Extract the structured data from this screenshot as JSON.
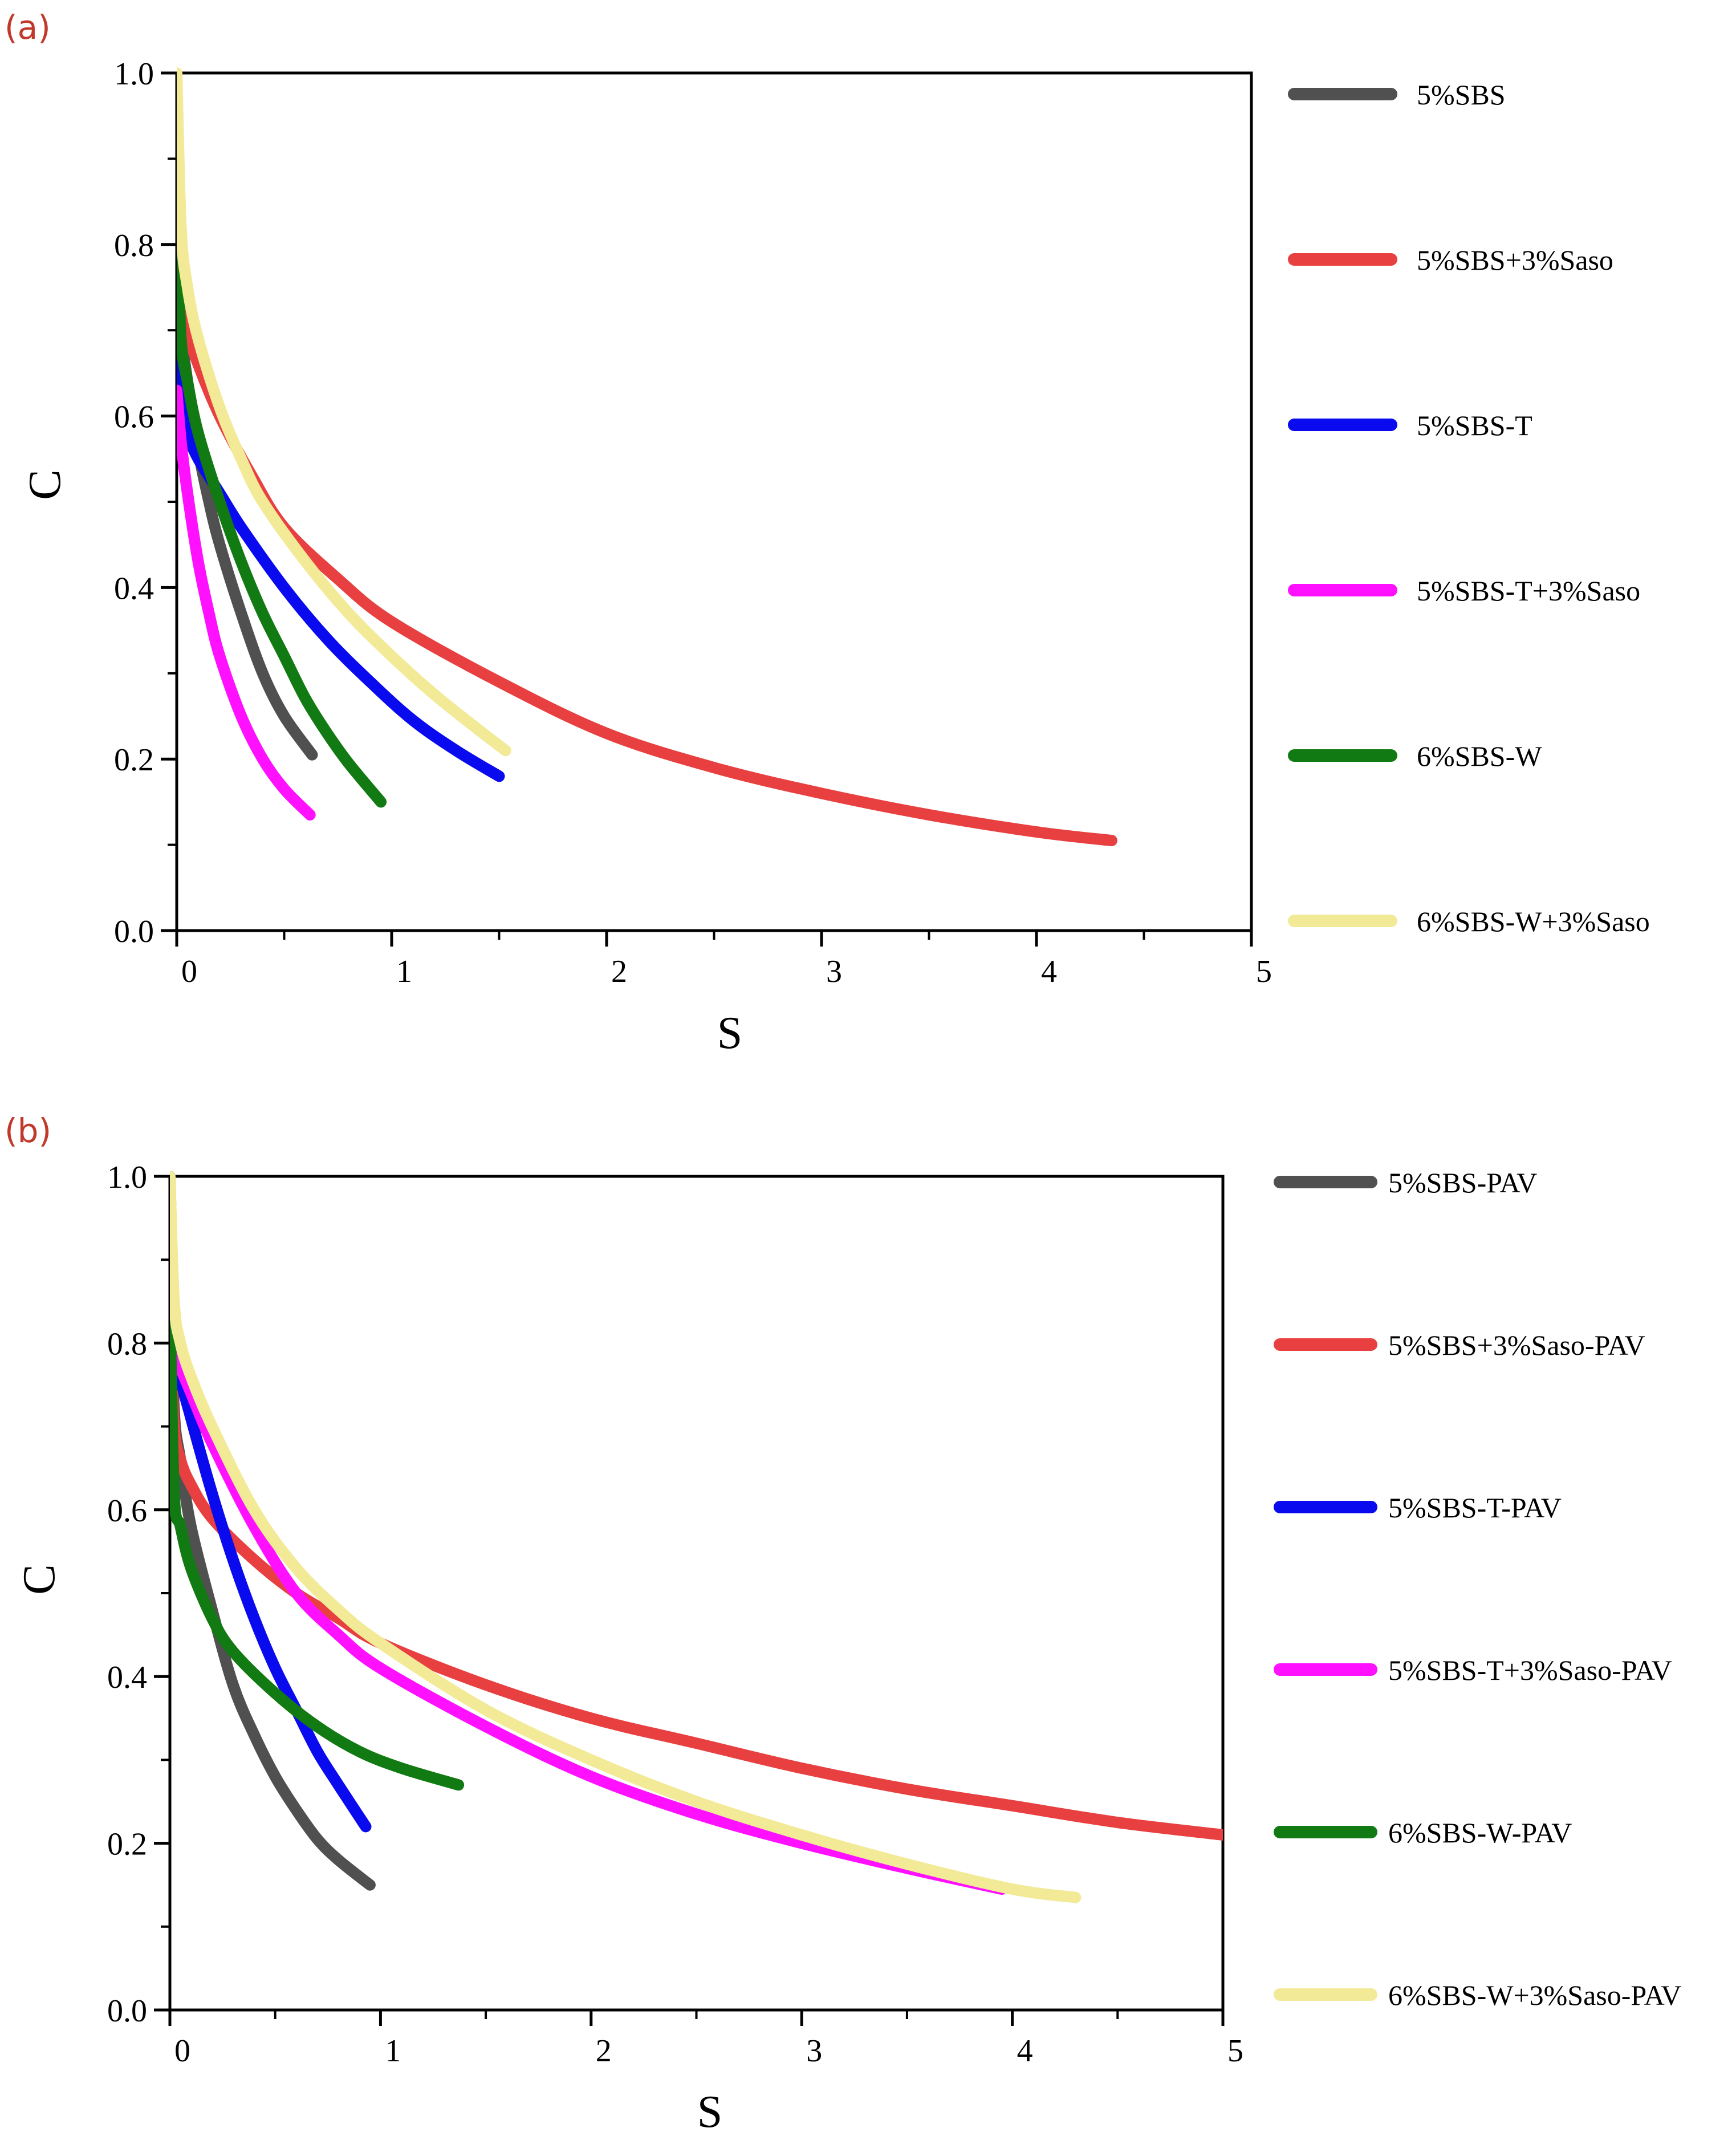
{
  "chart_data": [
    {
      "panel": "(a)",
      "type": "line",
      "title": "",
      "xlabel": "S",
      "ylabel": "C",
      "xlim": [
        0,
        5
      ],
      "ylim": [
        0.0,
        1.0
      ],
      "x_ticks": [
        "0",
        "1",
        "2",
        "3",
        "4",
        "5"
      ],
      "y_ticks": [
        "0.0",
        "0.2",
        "0.4",
        "0.6",
        "0.8",
        "1.0"
      ],
      "grid": false,
      "legend_position": "right",
      "series": [
        {
          "name": "5%SBS",
          "color": "#505050",
          "x": [
            0.0,
            0.02,
            0.05,
            0.1,
            0.15,
            0.2,
            0.3,
            0.4,
            0.5,
            0.63
          ],
          "y": [
            0.87,
            0.71,
            0.64,
            0.56,
            0.5,
            0.45,
            0.37,
            0.3,
            0.25,
            0.205
          ]
        },
        {
          "name": "5%SBS+3%Saso",
          "color": "#e84040",
          "x": [
            0.0,
            0.02,
            0.05,
            0.1,
            0.2,
            0.35,
            0.5,
            0.75,
            1.0,
            1.5,
            2.0,
            2.5,
            3.0,
            3.5,
            4.0,
            4.35
          ],
          "y": [
            0.91,
            0.75,
            0.7,
            0.66,
            0.6,
            0.53,
            0.47,
            0.41,
            0.36,
            0.29,
            0.23,
            0.19,
            0.16,
            0.135,
            0.115,
            0.105
          ]
        },
        {
          "name": "5%SBS-T",
          "color": "#0a0aee",
          "x": [
            0.0,
            0.02,
            0.05,
            0.1,
            0.2,
            0.3,
            0.5,
            0.7,
            0.9,
            1.1,
            1.3,
            1.5
          ],
          "y": [
            0.73,
            0.62,
            0.58,
            0.55,
            0.51,
            0.47,
            0.4,
            0.34,
            0.29,
            0.245,
            0.21,
            0.18
          ]
        },
        {
          "name": "5%SBS-T+3%Saso",
          "color": "#ff10ff",
          "x": [
            0.0,
            0.02,
            0.05,
            0.1,
            0.15,
            0.2,
            0.3,
            0.4,
            0.5,
            0.62
          ],
          "y": [
            0.63,
            0.57,
            0.51,
            0.43,
            0.37,
            0.32,
            0.25,
            0.2,
            0.165,
            0.135
          ]
        },
        {
          "name": "6%SBS-W",
          "color": "#127a12",
          "x": [
            0.0,
            0.02,
            0.05,
            0.1,
            0.2,
            0.3,
            0.4,
            0.5,
            0.6,
            0.7,
            0.8,
            0.95
          ],
          "y": [
            0.82,
            0.69,
            0.64,
            0.58,
            0.5,
            0.43,
            0.37,
            0.32,
            0.27,
            0.23,
            0.195,
            0.15
          ]
        },
        {
          "name": "6%SBS-W+3%Saso",
          "color": "#f2ea96",
          "x": [
            0.0,
            0.02,
            0.05,
            0.1,
            0.2,
            0.3,
            0.4,
            0.6,
            0.8,
            1.0,
            1.2,
            1.4,
            1.53
          ],
          "y": [
            1.0,
            0.82,
            0.75,
            0.69,
            0.61,
            0.55,
            0.5,
            0.43,
            0.37,
            0.32,
            0.275,
            0.235,
            0.21
          ]
        }
      ]
    },
    {
      "panel": "(b)",
      "type": "line",
      "title": "",
      "xlabel": "S",
      "ylabel": "C",
      "xlim": [
        0,
        5
      ],
      "ylim": [
        0.0,
        1.0
      ],
      "x_ticks": [
        "0",
        "1",
        "2",
        "3",
        "4",
        "5"
      ],
      "y_ticks": [
        "0.0",
        "0.2",
        "0.4",
        "0.6",
        "0.8",
        "1.0"
      ],
      "grid": false,
      "legend_position": "right",
      "series": [
        {
          "name": "5%SBS-PAV",
          "color": "#505050",
          "x": [
            0.0,
            0.02,
            0.05,
            0.1,
            0.2,
            0.3,
            0.4,
            0.5,
            0.6,
            0.7,
            0.8,
            0.95
          ],
          "y": [
            0.9,
            0.72,
            0.66,
            0.58,
            0.48,
            0.39,
            0.33,
            0.28,
            0.24,
            0.205,
            0.18,
            0.15
          ]
        },
        {
          "name": "5%SBS+3%Saso-PAV",
          "color": "#e84040",
          "x": [
            0.0,
            0.02,
            0.05,
            0.1,
            0.2,
            0.4,
            0.6,
            0.8,
            1.0,
            1.5,
            2.0,
            2.5,
            3.0,
            3.5,
            4.0,
            4.5,
            5.0
          ],
          "y": [
            0.82,
            0.7,
            0.66,
            0.63,
            0.59,
            0.54,
            0.5,
            0.47,
            0.44,
            0.39,
            0.35,
            0.32,
            0.29,
            0.265,
            0.245,
            0.225,
            0.21
          ]
        },
        {
          "name": "5%SBS-T-PAV",
          "color": "#0a0aee",
          "x": [
            0.0,
            0.02,
            0.05,
            0.1,
            0.2,
            0.3,
            0.4,
            0.5,
            0.6,
            0.7,
            0.8,
            0.93
          ],
          "y": [
            1.0,
            0.82,
            0.76,
            0.71,
            0.62,
            0.54,
            0.47,
            0.41,
            0.36,
            0.31,
            0.27,
            0.22
          ]
        },
        {
          "name": "5%SBS-T+3%Saso-PAV",
          "color": "#ff10ff",
          "x": [
            0.0,
            0.05,
            0.1,
            0.2,
            0.4,
            0.6,
            0.8,
            1.0,
            1.5,
            2.0,
            2.5,
            3.0,
            3.5,
            3.95
          ],
          "y": [
            0.8,
            0.77,
            0.74,
            0.68,
            0.58,
            0.5,
            0.45,
            0.41,
            0.34,
            0.28,
            0.235,
            0.2,
            0.17,
            0.145
          ]
        },
        {
          "name": "6%SBS-W-PAV",
          "color": "#127a12",
          "x": [
            0.0,
            0.02,
            0.05,
            0.1,
            0.2,
            0.3,
            0.5,
            0.7,
            0.9,
            1.1,
            1.37
          ],
          "y": [
            0.85,
            0.62,
            0.58,
            0.53,
            0.47,
            0.43,
            0.38,
            0.34,
            0.31,
            0.29,
            0.27
          ]
        },
        {
          "name": "6%SBS-W+3%Saso-PAV",
          "color": "#f2ea96",
          "x": [
            0.0,
            0.02,
            0.05,
            0.1,
            0.2,
            0.4,
            0.6,
            0.8,
            1.0,
            1.5,
            2.0,
            2.5,
            3.0,
            3.5,
            4.0,
            4.3
          ],
          "y": [
            1.0,
            0.85,
            0.8,
            0.76,
            0.7,
            0.6,
            0.53,
            0.48,
            0.44,
            0.36,
            0.3,
            0.25,
            0.21,
            0.175,
            0.145,
            0.135
          ]
        }
      ]
    }
  ]
}
